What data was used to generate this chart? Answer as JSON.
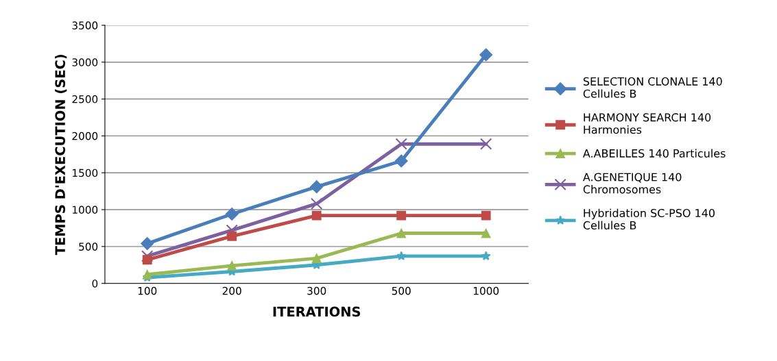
{
  "chart_data": {
    "type": "line",
    "xlabel": "ITERATIONS",
    "ylabel": "TEMPS D'EXECUTION (SEC)",
    "categories": [
      "100",
      "200",
      "300",
      "500",
      "1000"
    ],
    "ylim": [
      0,
      3500
    ],
    "yticks": [
      0,
      500,
      1000,
      1500,
      2000,
      2500,
      3000,
      3500
    ],
    "grid": "y",
    "legend": "right",
    "series": [
      {
        "name": "SELECTION CLONALE 140\nCellules B",
        "color": "#4a7ebb",
        "marker": "diamond",
        "values": [
          540,
          940,
          1310,
          1660,
          3100
        ]
      },
      {
        "name": "HARMONY SEARCH 140\nHarmonies",
        "color": "#be4b48",
        "marker": "square",
        "values": [
          320,
          640,
          920,
          920,
          920
        ]
      },
      {
        "name": "A.ABEILLES 140 Particules",
        "color": "#98b954",
        "marker": "triangle",
        "values": [
          120,
          240,
          340,
          680,
          680
        ]
      },
      {
        "name": "A.GENETIQUE 140\nChromosomes",
        "color": "#7d60a0",
        "marker": "cross",
        "values": [
          370,
          720,
          1080,
          1890,
          1890
        ]
      },
      {
        "name": "Hybridation SC-PSO 140\nCellules B",
        "color": "#46aac5",
        "marker": "star",
        "values": [
          80,
          160,
          250,
          370,
          370
        ]
      }
    ]
  }
}
